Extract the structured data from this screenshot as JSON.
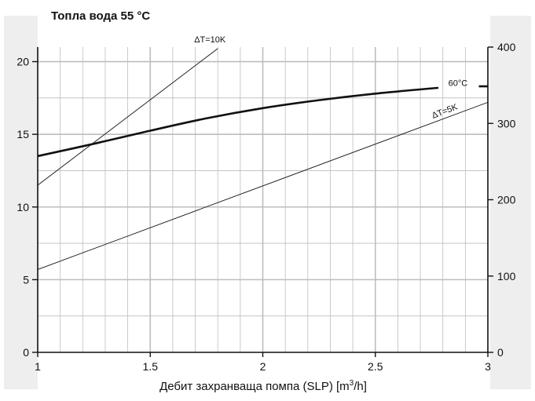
{
  "chart_data": {
    "type": "line",
    "title": "Топла вода 55 °C",
    "xlabel_main": "Дебит захранваща помпа (SLP) [m",
    "xlabel_sup": "3",
    "xlabel_tail": "/h]",
    "xlim": [
      1,
      3
    ],
    "ylim_left": [
      0,
      21
    ],
    "ylim_right": [
      0,
      400
    ],
    "x_ticks": [
      "1",
      "1.5",
      "2",
      "2.5",
      "3"
    ],
    "x_tick_values": [
      1,
      1.5,
      2,
      2.5,
      3
    ],
    "y_left_ticks": [
      "0",
      "5",
      "10",
      "15",
      "20"
    ],
    "y_left_tick_values": [
      0,
      5,
      10,
      15,
      20
    ],
    "y_right_ticks": [
      "0",
      "100",
      "200",
      "300",
      "400"
    ],
    "y_right_tick_values": [
      0,
      100,
      200,
      300,
      400
    ],
    "grid": true,
    "series": [
      {
        "name": "60°C",
        "axis": "left",
        "style": "thick",
        "x": [
          1.0,
          1.25,
          1.5,
          1.75,
          2.0,
          2.25,
          2.5,
          2.78
        ],
        "y": [
          13.5,
          14.35,
          15.25,
          16.1,
          16.8,
          17.35,
          17.8,
          18.2
        ]
      },
      {
        "name": "ΔT=10K",
        "axis": "left",
        "style": "thin",
        "x": [
          1.0,
          1.8
        ],
        "y": [
          11.5,
          20.9
        ]
      },
      {
        "name": "ΔT=5K",
        "axis": "left",
        "style": "thin",
        "x": [
          1.0,
          3.0
        ],
        "y": [
          5.7,
          17.2
        ]
      }
    ],
    "annotations": [
      {
        "text": "ΔT=10K",
        "x": 1.8,
        "y": 21.0
      },
      {
        "text": "60°C",
        "x": 2.88,
        "y": 18.55
      },
      {
        "text": "ΔT=5K",
        "x": 2.75,
        "y": 16.3
      }
    ],
    "colors": {
      "line": "#111111",
      "grid": "#bdbdbd",
      "side_band": "#eeeeee"
    }
  }
}
